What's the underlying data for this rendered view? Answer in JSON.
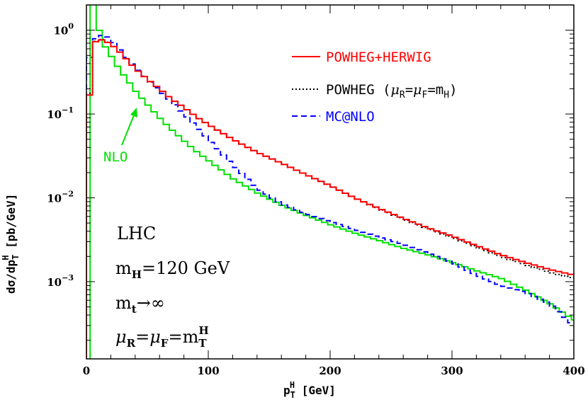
{
  "chart_data": {
    "type": "line",
    "xlabel": "p_T^H [GeV]",
    "ylabel": "dσ/dp_T^H [pb/GeV]",
    "xlim": [
      0,
      400
    ],
    "ylim": [
      0.00012,
      2
    ],
    "yscale": "log",
    "x_ticks": [
      "0",
      "100",
      "200",
      "300",
      "400"
    ],
    "y_ticks": [
      {
        "mantissa": "10",
        "exp": "0",
        "value": 1
      },
      {
        "mantissa": "10",
        "exp": "−1",
        "value": 0.1
      },
      {
        "mantissa": "10",
        "exp": "−2",
        "value": 0.01
      },
      {
        "mantissa": "10",
        "exp": "−3",
        "value": 0.001
      }
    ],
    "grid": false,
    "legend_position": "top-right",
    "series": [
      {
        "name": "POWHEG+HERWIG",
        "color": "#ff0000",
        "style": "solid",
        "x": [
          1,
          3,
          5,
          7,
          10,
          15,
          20,
          25,
          30,
          40,
          50,
          60,
          70,
          80,
          90,
          100,
          120,
          140,
          160,
          180,
          200,
          220,
          240,
          260,
          280,
          300,
          320,
          340,
          360,
          380,
          400
        ],
        "y": [
          0.03,
          0.3,
          0.62,
          0.72,
          0.78,
          0.75,
          0.68,
          0.6,
          0.5,
          0.35,
          0.26,
          0.2,
          0.15,
          0.12,
          0.093,
          0.075,
          0.05,
          0.035,
          0.026,
          0.019,
          0.014,
          0.01,
          0.0075,
          0.0057,
          0.0044,
          0.0035,
          0.0027,
          0.0021,
          0.0017,
          0.0014,
          0.0012
        ]
      },
      {
        "name": "POWHEG (μR=μF=mH)",
        "legend": {
          "pre": "POWHEG (",
          "mu": "μ",
          "R": "R",
          "eq": "=",
          "F": "F",
          "m": "m",
          "H": "H",
          "post": ")"
        },
        "color": "#000000",
        "style": "dotted",
        "x": [
          1,
          3,
          5,
          7,
          10,
          15,
          20,
          25,
          30,
          40,
          50,
          60,
          70,
          80,
          90,
          100,
          120,
          140,
          160,
          180,
          200,
          220,
          240,
          260,
          280,
          300,
          320,
          340,
          360,
          380,
          400
        ],
        "y": [
          0.03,
          0.32,
          0.64,
          0.73,
          0.79,
          0.76,
          0.68,
          0.6,
          0.5,
          0.35,
          0.26,
          0.2,
          0.15,
          0.12,
          0.093,
          0.075,
          0.05,
          0.035,
          0.026,
          0.019,
          0.014,
          0.01,
          0.0074,
          0.0056,
          0.0043,
          0.0034,
          0.0026,
          0.002,
          0.0016,
          0.0013,
          0.0011
        ]
      },
      {
        "name": "MC@NLO",
        "color": "#0000ff",
        "style": "dashed",
        "x": [
          1,
          3,
          5,
          7,
          10,
          15,
          20,
          25,
          30,
          40,
          50,
          60,
          70,
          80,
          90,
          100,
          120,
          140,
          160,
          180,
          200,
          220,
          240,
          260,
          280,
          300,
          320,
          340,
          360,
          380,
          400
        ],
        "y": [
          0.3,
          0.55,
          0.7,
          0.78,
          0.85,
          0.88,
          0.78,
          0.65,
          0.52,
          0.36,
          0.26,
          0.19,
          0.14,
          0.1,
          0.072,
          0.05,
          0.025,
          0.013,
          0.0085,
          0.0065,
          0.0052,
          0.0042,
          0.0034,
          0.0028,
          0.0022,
          0.0017,
          0.0012,
          0.0009,
          0.00075,
          0.00055,
          0.0003
        ]
      },
      {
        "name": "NLO",
        "color": "#00e000",
        "style": "solid",
        "x": [
          3,
          4,
          5,
          6,
          7,
          8,
          9,
          10,
          12,
          15,
          20,
          25,
          30,
          35,
          40,
          50,
          60,
          70,
          80,
          90,
          100,
          120,
          140,
          160,
          180,
          200,
          220,
          240,
          260,
          280,
          300,
          320,
          340,
          360,
          380,
          400
        ],
        "y": [
          1e-05,
          2.5,
          2.5,
          2.0,
          1.7,
          1.5,
          1.25,
          1.05,
          0.85,
          0.65,
          0.5,
          0.38,
          0.3,
          0.24,
          0.19,
          0.13,
          0.09,
          0.065,
          0.048,
          0.036,
          0.028,
          0.017,
          0.0115,
          0.0082,
          0.0062,
          0.0048,
          0.0038,
          0.0031,
          0.0025,
          0.0021,
          0.0017,
          0.00135,
          0.0011,
          0.0008,
          0.00055,
          0.00035
        ]
      }
    ],
    "annotations": {
      "nlo_label": "NLO",
      "lhc": "LHC",
      "mass_m": "m",
      "mass_sub": "H",
      "mass_val": "=120 GeV",
      "mt_m": "m",
      "mt_sub": "t",
      "mt_arrow": "→∞",
      "scale_mu1": "μ",
      "scale_R": "R",
      "scale_eq1": "=",
      "scale_mu2": "μ",
      "scale_F": "F",
      "scale_eq2": "=m",
      "scale_T": "T",
      "scale_H": "H"
    },
    "axis_title_parts": {
      "x_p": "p",
      "x_T": "T",
      "x_H": "H",
      "x_unit": " [GeV]",
      "y_pre": "dσ/dp",
      "y_T": "T",
      "y_H": "H",
      "y_unit": " [pb/GeV]"
    }
  }
}
